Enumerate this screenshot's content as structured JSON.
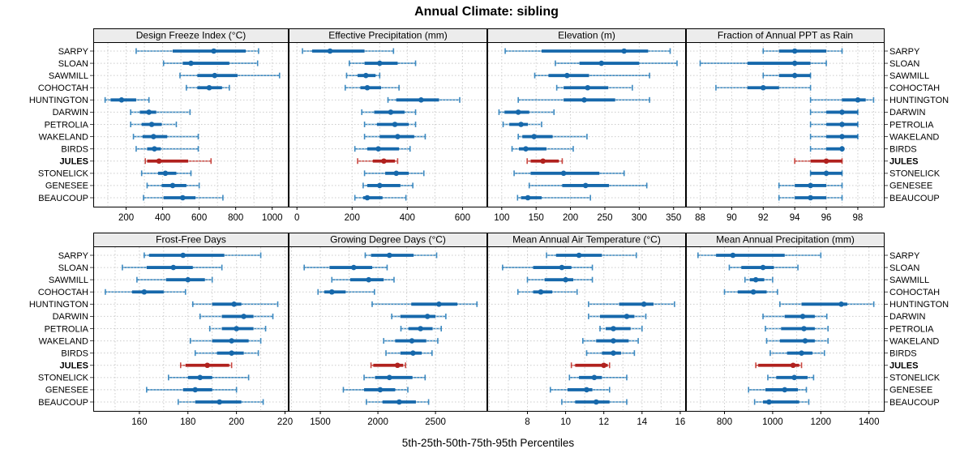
{
  "title": "Annual Climate: sibling",
  "xlabel": "5th-25th-50th-75th-95th Percentiles",
  "colors": {
    "blue_light": "#3d8ac1",
    "blue_dark": "#1668ab",
    "red_light": "#c94740",
    "red_dark": "#b0211e",
    "grid": "#cccccc",
    "strip_bg": "#ececec",
    "panel_border": "#000000",
    "axis_text": "#111111"
  },
  "chart_data": {
    "type": "dotplot-percentile-trellis",
    "layout": {
      "rows": 2,
      "cols": 4,
      "legend_position": "none",
      "grid": "dotted",
      "site_labels": "left-and-right"
    },
    "percentile_levels": [
      5,
      25,
      50,
      75,
      95
    ],
    "highlight_site": "JULES",
    "sites": [
      "SARPY",
      "SLOAN",
      "SAWMILL",
      "COHOCTAH",
      "HUNTINGTON",
      "DARWIN",
      "PETROLIA",
      "WAKELAND",
      "BIRDS",
      "JULES",
      "STONELICK",
      "GENESEE",
      "BEAUCOUP"
    ],
    "panels": [
      {
        "title": "Design Freeze Index (°C)",
        "row": 0,
        "col": 0,
        "ticks": [
          200,
          400,
          600,
          800,
          1000
        ],
        "grid_step": 100,
        "xlim": [
          20,
          1090
        ],
        "values": {
          "SARPY": [
            255,
            455,
            680,
            855,
            925
          ],
          "SLOAN": [
            405,
            510,
            555,
            765,
            920
          ],
          "SAWMILL": [
            495,
            590,
            685,
            810,
            1040
          ],
          "COHOCTAH": [
            530,
            590,
            655,
            725,
            765
          ],
          "HUNTINGTON": [
            85,
            115,
            175,
            255,
            325
          ],
          "DARWIN": [
            225,
            275,
            325,
            365,
            550
          ],
          "PETROLIA": [
            225,
            285,
            340,
            395,
            475
          ],
          "WAKELAND": [
            240,
            290,
            350,
            425,
            595
          ],
          "BIRDS": [
            255,
            315,
            355,
            390,
            595
          ],
          "JULES": [
            305,
            315,
            380,
            540,
            665
          ],
          "STONELICK": [
            285,
            375,
            415,
            475,
            555
          ],
          "GENESEE": [
            315,
            395,
            455,
            530,
            600
          ],
          "BEAUCOUP": [
            295,
            405,
            510,
            580,
            730
          ]
        }
      },
      {
        "title": "Effective Precipitation (mm)",
        "row": 0,
        "col": 1,
        "ticks": [
          0,
          200,
          400,
          600
        ],
        "grid_step": 100,
        "xlim": [
          -30,
          690
        ],
        "values": {
          "SARPY": [
            20,
            55,
            120,
            245,
            350
          ],
          "SLOAN": [
            190,
            245,
            300,
            365,
            430
          ],
          "SAWMILL": [
            180,
            220,
            250,
            285,
            300
          ],
          "COHOCTAH": [
            175,
            230,
            255,
            305,
            370
          ],
          "HUNTINGTON": [
            330,
            360,
            450,
            515,
            590
          ],
          "DARWIN": [
            235,
            280,
            340,
            390,
            430
          ],
          "PETROLIA": [
            245,
            290,
            355,
            405,
            430
          ],
          "WAKELAND": [
            245,
            300,
            365,
            425,
            465
          ],
          "BIRDS": [
            210,
            255,
            295,
            370,
            410
          ],
          "JULES": [
            220,
            275,
            315,
            355,
            365
          ],
          "STONELICK": [
            245,
            320,
            360,
            405,
            460
          ],
          "GENESEE": [
            240,
            255,
            300,
            375,
            420
          ],
          "BEAUCOUP": [
            210,
            240,
            255,
            310,
            395
          ]
        }
      },
      {
        "title": "Elevation (m)",
        "row": 0,
        "col": 2,
        "ticks": [
          100,
          150,
          200,
          250,
          300,
          350
        ],
        "grid_step": 50,
        "xlim": [
          79,
          368
        ],
        "values": {
          "SARPY": [
            105,
            158,
            278,
            313,
            345
          ],
          "SLOAN": [
            178,
            213,
            245,
            300,
            355
          ],
          "SAWMILL": [
            148,
            168,
            195,
            227,
            315
          ],
          "COHOCTAH": [
            180,
            190,
            225,
            255,
            290
          ],
          "HUNTINGTON": [
            124,
            190,
            220,
            265,
            315
          ],
          "DARWIN": [
            96,
            104,
            124,
            140,
            176
          ],
          "PETROLIA": [
            102,
            111,
            128,
            138,
            158
          ],
          "WAKELAND": [
            124,
            130,
            147,
            174,
            224
          ],
          "BIRDS": [
            115,
            125,
            135,
            165,
            204
          ],
          "JULES": [
            137,
            142,
            160,
            183,
            188
          ],
          "STONELICK": [
            118,
            142,
            190,
            242,
            278
          ],
          "GENESEE": [
            140,
            188,
            222,
            256,
            311
          ],
          "BEAUCOUP": [
            123,
            128,
            138,
            158,
            229
          ]
        }
      },
      {
        "title": "Fraction of Annual PPT as Rain",
        "row": 0,
        "col": 3,
        "ticks": [
          88,
          90,
          92,
          94,
          96,
          98
        ],
        "grid_step": 1,
        "xlim": [
          87.1,
          99.7
        ],
        "values": {
          "SARPY": [
            92,
            93,
            94,
            96,
            97
          ],
          "SLOAN": [
            88,
            91,
            94,
            95,
            96
          ],
          "SAWMILL": [
            92,
            93,
            94,
            95,
            95
          ],
          "COHOCTAH": [
            89,
            91,
            92,
            93,
            95
          ],
          "HUNTINGTON": [
            95,
            97,
            98,
            98.5,
            99
          ],
          "DARWIN": [
            95,
            96,
            97,
            98,
            98
          ],
          "PETROLIA": [
            95,
            96,
            97,
            98,
            98
          ],
          "WAKELAND": [
            95,
            96,
            97,
            98,
            98
          ],
          "BIRDS": [
            95,
            96,
            97,
            97,
            97
          ],
          "JULES": [
            94,
            95,
            96,
            97,
            97
          ],
          "STONELICK": [
            95,
            95,
            96,
            97,
            97
          ],
          "GENESEE": [
            93,
            94,
            95,
            96,
            97
          ],
          "BEAUCOUP": [
            93,
            94,
            95,
            96,
            97
          ]
        }
      },
      {
        "title": "Frost-Free Days",
        "row": 1,
        "col": 0,
        "ticks": [
          160,
          180,
          200,
          220
        ],
        "grid_step": 10,
        "xlim": [
          141,
          221.5
        ],
        "values": {
          "SARPY": [
            162,
            164,
            178,
            195,
            210
          ],
          "SLOAN": [
            153,
            163,
            174,
            182,
            194
          ],
          "SAWMILL": [
            159,
            171,
            180,
            187,
            190
          ],
          "COHOCTAH": [
            146,
            157,
            162,
            170,
            179
          ],
          "HUNTINGTON": [
            182,
            190,
            199,
            202,
            217
          ],
          "DARWIN": [
            185,
            194,
            203,
            207,
            215
          ],
          "PETROLIA": [
            189,
            194,
            200,
            207,
            212
          ],
          "WAKELAND": [
            181,
            190,
            198,
            205,
            210
          ],
          "BIRDS": [
            183,
            192,
            198,
            203,
            209
          ],
          "JULES": [
            177,
            179,
            188,
            197,
            198
          ],
          "STONELICK": [
            172,
            180,
            185,
            190,
            205
          ],
          "GENESEE": [
            163,
            178,
            183,
            190,
            200
          ],
          "BEAUCOUP": [
            176,
            183,
            193,
            202,
            211
          ]
        }
      },
      {
        "title": "Growing Degree Days (°C)",
        "row": 1,
        "col": 1,
        "ticks": [
          1500,
          2000,
          2500
        ],
        "grid_step": 250,
        "xlim": [
          1225,
          2950
        ],
        "values": {
          "SARPY": [
            1890,
            1940,
            2100,
            2310,
            2510
          ],
          "SLOAN": [
            1360,
            1580,
            1790,
            1950,
            2080
          ],
          "SAWMILL": [
            1600,
            1760,
            1920,
            2050,
            2140
          ],
          "COHOCTAH": [
            1480,
            1535,
            1600,
            1720,
            1970
          ],
          "HUNTINGTON": [
            1950,
            2290,
            2530,
            2690,
            2860
          ],
          "DARWIN": [
            2120,
            2195,
            2430,
            2500,
            2590
          ],
          "PETROLIA": [
            2200,
            2265,
            2370,
            2475,
            2550
          ],
          "WAKELAND": [
            2050,
            2150,
            2295,
            2420,
            2520
          ],
          "BIRDS": [
            2070,
            2195,
            2305,
            2380,
            2470
          ],
          "JULES": [
            1940,
            1960,
            2170,
            2220,
            2240
          ],
          "STONELICK": [
            1880,
            1975,
            2100,
            2300,
            2410
          ],
          "GENESEE": [
            1700,
            1880,
            2020,
            2150,
            2260
          ],
          "BEAUCOUP": [
            1900,
            2040,
            2185,
            2330,
            2440
          ]
        }
      },
      {
        "title": "Mean Annual Air Temperature (°C)",
        "row": 1,
        "col": 2,
        "ticks": [
          8,
          10,
          12,
          14,
          16
        ],
        "grid_step": 1,
        "xlim": [
          5.9,
          16.3
        ],
        "values": {
          "SARPY": [
            9.0,
            9.5,
            10.7,
            11.9,
            13.7
          ],
          "SLOAN": [
            6.7,
            8.3,
            9.8,
            10.3,
            11.4
          ],
          "SAWMILL": [
            8.0,
            8.9,
            10.0,
            10.4,
            11.4
          ],
          "COHOCTAH": [
            7.5,
            8.3,
            8.7,
            9.3,
            10.6
          ],
          "HUNTINGTON": [
            11.2,
            12.8,
            14.1,
            14.6,
            15.7
          ],
          "DARWIN": [
            11.2,
            11.8,
            13.2,
            13.6,
            14.2
          ],
          "PETROLIA": [
            11.8,
            12.1,
            12.5,
            13.4,
            14.0
          ],
          "WAKELAND": [
            10.9,
            11.6,
            12.5,
            13.3,
            13.8
          ],
          "BIRDS": [
            11.1,
            11.9,
            12.5,
            12.9,
            13.6
          ],
          "JULES": [
            10.3,
            10.5,
            12.0,
            12.2,
            12.3
          ],
          "STONELICK": [
            10.2,
            10.7,
            11.5,
            11.9,
            13.2
          ],
          "GENESEE": [
            9.2,
            10.1,
            11.1,
            11.4,
            12.3
          ],
          "BEAUCOUP": [
            9.8,
            10.5,
            11.6,
            12.3,
            13.2
          ]
        }
      },
      {
        "title": "Mean Annual Precipitation (mm)",
        "row": 1,
        "col": 3,
        "ticks": [
          800,
          1000,
          1200,
          1400
        ],
        "grid_step": 100,
        "xlim": [
          640,
          1465
        ],
        "values": {
          "SARPY": [
            690,
            765,
            835,
            1050,
            1200
          ],
          "SLOAN": [
            820,
            870,
            960,
            1005,
            1105
          ],
          "SAWMILL": [
            885,
            905,
            930,
            965,
            1000
          ],
          "COHOCTAH": [
            800,
            855,
            920,
            975,
            1020
          ],
          "HUNTINGTON": [
            1030,
            1120,
            1285,
            1310,
            1420
          ],
          "DARWIN": [
            960,
            1050,
            1125,
            1175,
            1225
          ],
          "PETROLIA": [
            970,
            1035,
            1130,
            1175,
            1230
          ],
          "WAKELAND": [
            975,
            1030,
            1135,
            1175,
            1230
          ],
          "BIRDS": [
            990,
            1060,
            1120,
            1165,
            1215
          ],
          "JULES": [
            930,
            940,
            1085,
            1110,
            1120
          ],
          "STONELICK": [
            980,
            1015,
            1090,
            1145,
            1170
          ],
          "GENESEE": [
            900,
            970,
            1050,
            1105,
            1140
          ],
          "BEAUCOUP": [
            925,
            960,
            985,
            1110,
            1150
          ]
        }
      }
    ]
  }
}
